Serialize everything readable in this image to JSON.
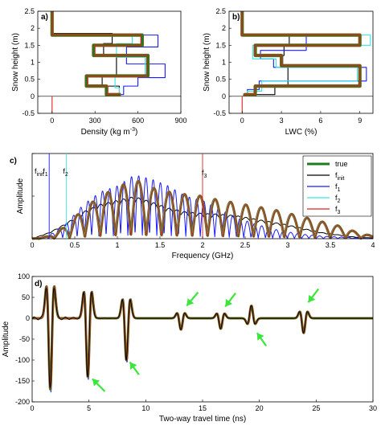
{
  "colors": {
    "true": "#1e7b1e",
    "f_init": "#000000",
    "f_1": "#1a1aff",
    "f_2": "#33e6e6",
    "f_3": "#e0221c",
    "arrow": "#39e639",
    "true_edge": "#8a5a1a"
  },
  "chart_data": [
    {
      "id": "a",
      "panel_label": "a)",
      "type": "line",
      "xlabel_main": "Density (kg m",
      "xlabel_sup": "-3",
      "xlabel_end": ")",
      "ylabel": "Snow height (m)",
      "xlim": [
        -100,
        900
      ],
      "ylim": [
        -0.5,
        2.5
      ],
      "xticks": [
        0,
        300,
        600,
        900
      ],
      "yticks": [
        -0.5,
        0,
        0.5,
        1,
        1.5,
        2,
        2.5
      ],
      "ytick_labels": [
        "-0.5",
        "0",
        "0.5",
        "1",
        "1.5",
        "2",
        "2.5"
      ],
      "series": [
        {
          "key": "f_init",
          "x": [
            0,
            0,
            420,
            420,
            360,
            360,
            450,
            450,
            350,
            350,
            470,
            470,
            390,
            390,
            460
          ],
          "y": [
            2.5,
            1.85,
            1.85,
            1.55,
            1.55,
            1.2,
            1.2,
            0.6,
            0.6,
            0.3,
            0.3,
            0.05,
            0.05,
            0.05,
            0.05
          ]
        },
        {
          "key": "f_1",
          "x": [
            0,
            0,
            740,
            740,
            520,
            520,
            790,
            790,
            600,
            600,
            500,
            500,
            400,
            400,
            480
          ],
          "y": [
            2.5,
            1.8,
            1.8,
            1.45,
            1.45,
            0.95,
            0.95,
            0.55,
            0.55,
            0.3,
            0.3,
            0.05,
            0.05,
            0.05,
            0.05
          ]
        },
        {
          "key": "f_2",
          "x": [
            0,
            0,
            560,
            560,
            450,
            450,
            650,
            650,
            440,
            440,
            470,
            470,
            400,
            400,
            470
          ],
          "y": [
            2.5,
            1.8,
            1.8,
            1.55,
            1.55,
            1.15,
            1.15,
            0.6,
            0.6,
            0.25,
            0.25,
            0.05,
            0.05,
            0.05,
            0.05
          ]
        },
        {
          "key": "true",
          "x": [
            0,
            0,
            630,
            630,
            290,
            290,
            670,
            670,
            240,
            240,
            380,
            380,
            380,
            380,
            480
          ],
          "y": [
            2.5,
            1.8,
            1.8,
            1.5,
            1.5,
            1.2,
            1.2,
            0.6,
            0.6,
            0.3,
            0.3,
            0.05,
            0.05,
            0.05,
            0.05
          ]
        },
        {
          "key": "f_3",
          "x": [
            0,
            0,
            620,
            620,
            300,
            300,
            660,
            660,
            250,
            250,
            390,
            390,
            380,
            380,
            480
          ],
          "y": [
            2.5,
            1.8,
            1.8,
            1.5,
            1.5,
            1.2,
            1.2,
            0.6,
            0.6,
            0.3,
            0.3,
            0.05,
            0.05,
            0.05,
            0.05
          ]
        },
        {
          "key": "f_3",
          "x": [
            0,
            0
          ],
          "y": [
            0,
            -0.5
          ]
        }
      ]
    },
    {
      "id": "b",
      "panel_label": "b)",
      "type": "line",
      "xlabel": "LWC (%)",
      "ylabel": "Snow height (m)",
      "xlim": [
        -1,
        10
      ],
      "ylim": [
        -0.5,
        2.5
      ],
      "xticks": [
        0,
        3,
        6,
        9
      ],
      "yticks": [
        -0.5,
        0,
        0.5,
        1,
        1.5,
        2,
        2.5
      ],
      "ytick_labels": [
        "-0.5",
        "0",
        "0.5",
        "1",
        "1.5",
        "2",
        "2.5"
      ],
      "series": [
        {
          "key": "f_init",
          "x": [
            0,
            0,
            3.6,
            3.6,
            3.2,
            3.2,
            3.1,
            3.1,
            3.5,
            3.5,
            2.5,
            2.5,
            0.3,
            0.3
          ],
          "y": [
            2.5,
            1.8,
            1.8,
            1.5,
            1.5,
            1.2,
            1.2,
            0.85,
            0.85,
            0.3,
            0.3,
            0.05,
            0.05,
            0
          ],
          "w": 1
        },
        {
          "key": "f_1",
          "x": [
            0,
            0,
            4.9,
            4.9,
            1.4,
            1.4,
            2.4,
            2.4,
            9.5,
            9.5,
            1.3,
            1.3,
            0.4,
            0.4
          ],
          "y": [
            2.5,
            1.8,
            1.8,
            1.35,
            1.35,
            1.1,
            1.1,
            0.85,
            0.85,
            0.45,
            0.45,
            0.2,
            0.2,
            0
          ],
          "w": 1
        },
        {
          "key": "f_2",
          "x": [
            0,
            0,
            9.8,
            9.8,
            0.8,
            0.8,
            2.6,
            2.6,
            8.8,
            8.8,
            1.5,
            1.5,
            0.4,
            0.4
          ],
          "y": [
            2.5,
            1.8,
            1.8,
            1.5,
            1.5,
            1.1,
            1.1,
            0.85,
            0.85,
            0.45,
            0.45,
            0.15,
            0.15,
            0
          ],
          "w": 1
        },
        {
          "key": "true",
          "x": [
            0,
            0,
            9,
            9,
            1,
            1,
            3,
            3,
            9,
            9,
            1,
            1,
            0.2,
            0.2
          ],
          "y": [
            2.5,
            1.8,
            1.8,
            1.5,
            1.5,
            1.2,
            1.2,
            0.9,
            0.9,
            0.3,
            0.3,
            0.05,
            0.05,
            0
          ],
          "w": 3
        },
        {
          "key": "f_3",
          "x": [
            0,
            0,
            9,
            9,
            1,
            1,
            3,
            3,
            9,
            9,
            1,
            1,
            0.2,
            0.2
          ],
          "y": [
            2.5,
            1.8,
            1.8,
            1.5,
            1.5,
            1.2,
            1.2,
            0.9,
            0.9,
            0.3,
            0.3,
            0.05,
            0.05,
            0
          ],
          "w": 1
        },
        {
          "key": "f_3",
          "x": [
            0,
            0
          ],
          "y": [
            0,
            -0.5
          ],
          "w": 1
        }
      ]
    },
    {
      "id": "c",
      "panel_label": "c)",
      "type": "line",
      "xlabel": "Frequency (GHz)",
      "ylabel": "Amplitude",
      "xlim": [
        0,
        4
      ],
      "ylim": [
        0,
        1
      ],
      "xticks": [
        0,
        0.5,
        1,
        1.5,
        2,
        2.5,
        3,
        3.5,
        4
      ],
      "xtick_labels": [
        "0",
        "0.5",
        "1",
        "1.5",
        "2",
        "2.5",
        "3",
        "3.5",
        "4"
      ],
      "vlines": [
        {
          "key": "f_init",
          "x": 0.0,
          "label": "f",
          "sub": "init"
        },
        {
          "key": "f_1",
          "x": 0.2,
          "label": "f",
          "sub": "1"
        },
        {
          "key": "f_2",
          "x": 0.4,
          "label": "f",
          "sub": "2"
        },
        {
          "key": "f_3",
          "x": 2.0,
          "label": "f",
          "sub": "3"
        }
      ],
      "legend": [
        {
          "key": "true",
          "label": "true",
          "sub": ""
        },
        {
          "key": "f_init",
          "label": "f",
          "sub": "init"
        },
        {
          "key": "f_1",
          "label": "f",
          "sub": "1"
        },
        {
          "key": "f_2",
          "label": "f",
          "sub": "2"
        },
        {
          "key": "f_3",
          "label": "f",
          "sub": "3"
        }
      ],
      "legend_position": "top-right",
      "envelope": {
        "x": [
          0,
          0.2,
          0.4,
          0.6,
          0.8,
          1.0,
          1.2,
          1.4,
          1.6,
          1.8,
          2.0,
          2.2,
          2.4,
          2.6,
          2.8,
          3.0,
          3.2,
          3.4,
          3.6,
          3.8,
          4.0
        ],
        "true": [
          0.0,
          0.03,
          0.15,
          0.35,
          0.5,
          0.6,
          0.7,
          0.6,
          0.55,
          0.52,
          0.5,
          0.45,
          0.42,
          0.38,
          0.35,
          0.3,
          0.25,
          0.2,
          0.15,
          0.08,
          0.03
        ],
        "f_init": [
          0.0,
          0.08,
          0.2,
          0.35,
          0.45,
          0.5,
          0.55,
          0.48,
          0.4,
          0.35,
          0.33,
          0.32,
          0.3,
          0.26,
          0.22,
          0.18,
          0.13,
          0.08,
          0.05,
          0.02,
          0.01
        ],
        "f_1": [
          0.0,
          0.04,
          0.18,
          0.4,
          0.55,
          0.62,
          0.75,
          0.7,
          0.62,
          0.5,
          0.45,
          0.35,
          0.25,
          0.18,
          0.12,
          0.08,
          0.05,
          0.03,
          0.02,
          0.01,
          0.0
        ]
      }
    },
    {
      "id": "d",
      "panel_label": "d)",
      "type": "line",
      "xlabel": "Two-way travel time (ns)",
      "ylabel": "Amplitude",
      "xlim": [
        0,
        30
      ],
      "ylim": [
        -200,
        100
      ],
      "xticks": [
        0,
        5,
        10,
        15,
        20,
        25,
        30
      ],
      "yticks": [
        -200,
        -150,
        -100,
        -50,
        0,
        50,
        100
      ],
      "pulses": [
        {
          "t": 1.6,
          "a": 170
        },
        {
          "t": 4.9,
          "a": 140
        },
        {
          "t": 8.3,
          "a": 100
        },
        {
          "t": 13.1,
          "a": 27
        },
        {
          "t": 16.6,
          "a": 25
        },
        {
          "t": 19.3,
          "a": -30
        },
        {
          "t": 23.9,
          "a": 35
        }
      ],
      "arrows": [
        {
          "tip_x": 5.3,
          "tip_y": -145,
          "tail_x": 6.4,
          "tail_y": -175
        },
        {
          "tip_x": 8.6,
          "tip_y": -105,
          "tail_x": 9.4,
          "tail_y": -135
        },
        {
          "tip_x": 13.6,
          "tip_y": 30,
          "tail_x": 14.6,
          "tail_y": 62
        },
        {
          "tip_x": 17.0,
          "tip_y": 28,
          "tail_x": 17.9,
          "tail_y": 60
        },
        {
          "tip_x": 19.8,
          "tip_y": -35,
          "tail_x": 20.6,
          "tail_y": -66
        },
        {
          "tip_x": 24.3,
          "tip_y": 38,
          "tail_x": 25.2,
          "tail_y": 70
        }
      ]
    }
  ]
}
